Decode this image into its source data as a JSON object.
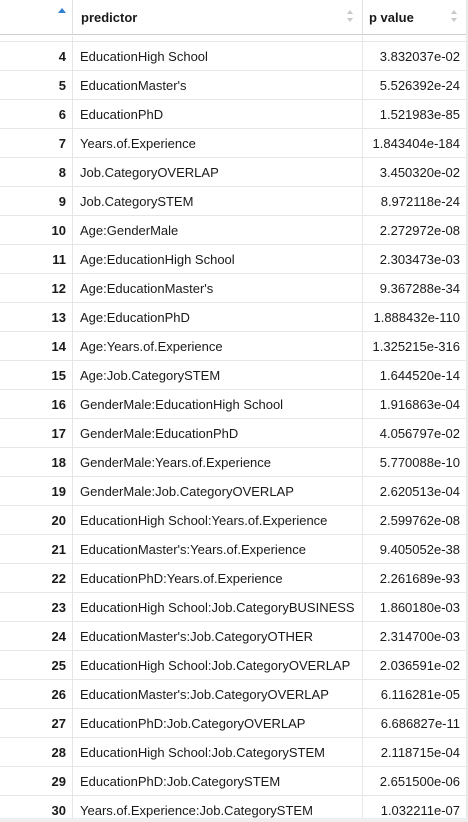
{
  "header": {
    "col0": "",
    "col1": "predictor",
    "col2": "p value"
  },
  "rows": [
    [
      "",
      "",
      ""
    ],
    [
      "4",
      "EducationHigh School",
      "3.832037e-02"
    ],
    [
      "5",
      "EducationMaster's",
      "5.526392e-24"
    ],
    [
      "6",
      "EducationPhD",
      "1.521983e-85"
    ],
    [
      "7",
      "Years.of.Experience",
      "1.843404e-184"
    ],
    [
      "8",
      "Job.CategoryOVERLAP",
      "3.450320e-02"
    ],
    [
      "9",
      "Job.CategorySTEM",
      "8.972118e-24"
    ],
    [
      "10",
      "Age:GenderMale",
      "2.272972e-08"
    ],
    [
      "11",
      "Age:EducationHigh School",
      "2.303473e-03"
    ],
    [
      "12",
      "Age:EducationMaster's",
      "9.367288e-34"
    ],
    [
      "13",
      "Age:EducationPhD",
      "1.888432e-110"
    ],
    [
      "14",
      "Age:Years.of.Experience",
      "1.325215e-316"
    ],
    [
      "15",
      "Age:Job.CategorySTEM",
      "1.644520e-14"
    ],
    [
      "16",
      "GenderMale:EducationHigh School",
      "1.916863e-04"
    ],
    [
      "17",
      "GenderMale:EducationPhD",
      "4.056797e-02"
    ],
    [
      "18",
      "GenderMale:Years.of.Experience",
      "5.770088e-10"
    ],
    [
      "19",
      "GenderMale:Job.CategoryOVERLAP",
      "2.620513e-04"
    ],
    [
      "20",
      "EducationHigh School:Years.of.Experience",
      "2.599762e-08"
    ],
    [
      "21",
      "EducationMaster's:Years.of.Experience",
      "9.405052e-38"
    ],
    [
      "22",
      "EducationPhD:Years.of.Experience",
      "2.261689e-93"
    ],
    [
      "23",
      "EducationHigh School:Job.CategoryBUSINESS",
      "1.860180e-03"
    ],
    [
      "24",
      "EducationMaster's:Job.CategoryOTHER",
      "2.314700e-03"
    ],
    [
      "25",
      "EducationHigh School:Job.CategoryOVERLAP",
      "2.036591e-02"
    ],
    [
      "26",
      "EducationMaster's:Job.CategoryOVERLAP",
      "6.116281e-05"
    ],
    [
      "27",
      "EducationPhD:Job.CategoryOVERLAP",
      "6.686827e-11"
    ],
    [
      "28",
      "EducationHigh School:Job.CategorySTEM",
      "2.118715e-04"
    ],
    [
      "29",
      "EducationPhD:Job.CategorySTEM",
      "2.651500e-06"
    ],
    [
      "30",
      "Years.of.Experience:Job.CategorySTEM",
      "1.032211e-07"
    ]
  ]
}
